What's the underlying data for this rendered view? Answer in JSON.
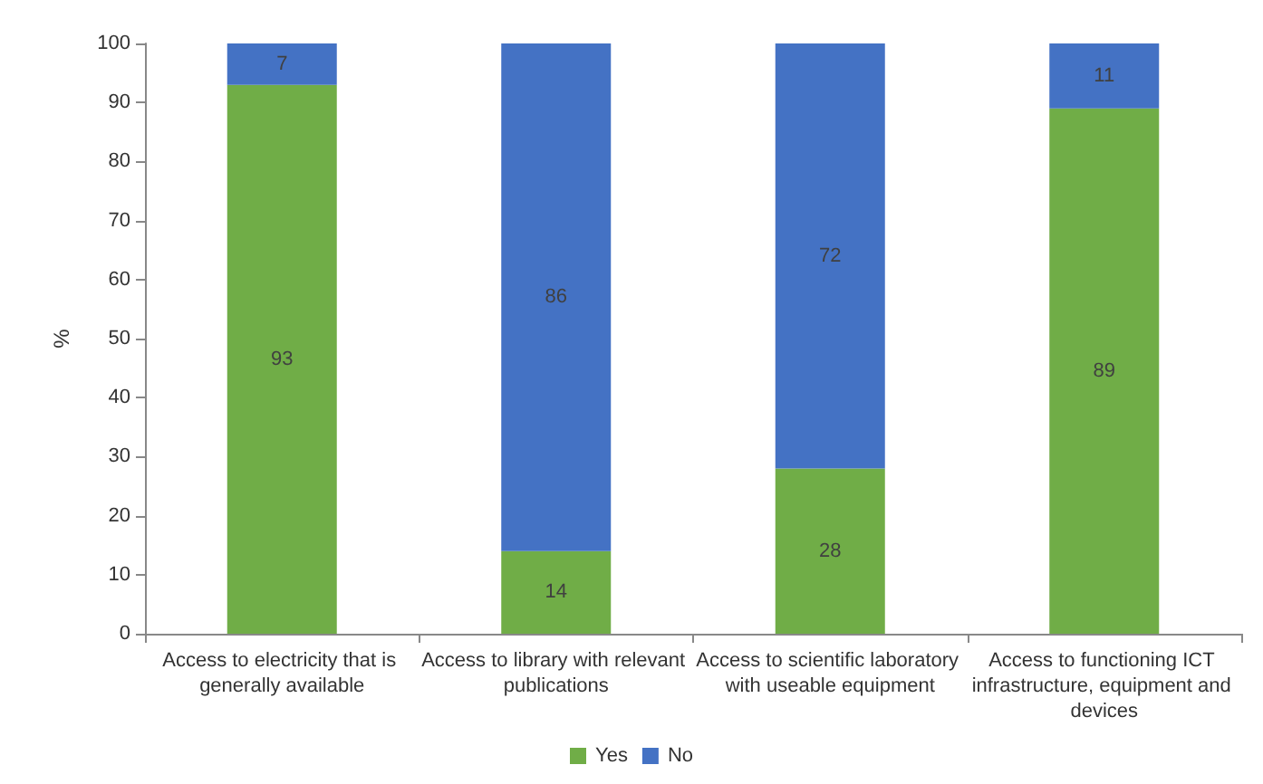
{
  "chart_data": {
    "type": "bar",
    "stacked": true,
    "ylabel": "%",
    "categories": [
      "Access to electricity that is generally available",
      "Access to library with relevant publications",
      "Access to scientific laboratory with useable equipment",
      "Access to functioning ICT infrastructure, equipment and devices"
    ],
    "series": [
      {
        "name": "Yes",
        "color": "#70ad47",
        "values": [
          93,
          14,
          28,
          89
        ]
      },
      {
        "name": "No",
        "color": "#4472c4",
        "values": [
          7,
          86,
          72,
          11
        ]
      }
    ],
    "ylim": [
      0,
      100
    ],
    "yticks": [
      0,
      10,
      20,
      30,
      40,
      50,
      60,
      70,
      80,
      90,
      100
    ],
    "grid": false,
    "legend": "bottom",
    "data_labels": true
  }
}
